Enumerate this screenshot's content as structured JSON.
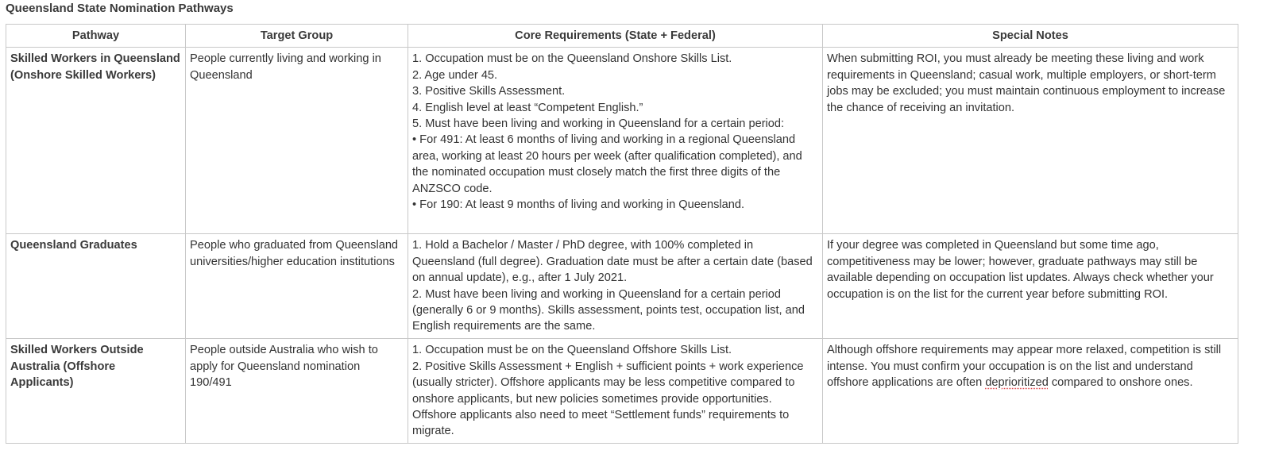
{
  "title": "Queensland State Nomination Pathways",
  "columns": [
    "Pathway",
    "Target Group",
    "Core Requirements (State + Federal)",
    "Special Notes"
  ],
  "rows": [
    {
      "pathway": "Skilled Workers in Queensland (Onshore Skilled Workers)",
      "target": "People currently living and working in Queensland",
      "requirements": [
        "1. Occupation must be on the Queensland Onshore Skills List.",
        "2. Age under 45.",
        "3. Positive Skills Assessment.",
        "4. English level at least “Competent English.”",
        "5. Must have been living and working in Queensland for a certain period:",
        "• For 491: At least 6 months of living and working in a regional Queensland area, working at least 20 hours per week (after qualification completed), and the nominated occupation must closely match the first three digits of the ANZSCO code.",
        "• For 190: At least 9 months of living and working in Queensland."
      ],
      "notes": "When submitting ROI, you must already be meeting these living and work requirements in Queensland; casual work, multiple employers, or short-term jobs may be excluded; you must maintain continuous employment to increase the chance of receiving an invitation."
    },
    {
      "pathway": "Queensland Graduates",
      "target": "People who graduated from Queensland universities/higher education institutions",
      "requirements": [
        "1. Hold a Bachelor / Master / PhD degree, with 100% completed in Queensland (full degree). Graduation date must be after a certain date (based on annual update), e.g., after 1 July 2021.",
        "2. Must have been living and working in Queensland for a certain period (generally 6 or 9 months). Skills assessment, points test, occupation list, and English requirements are the same."
      ],
      "notes": "If your degree was completed in Queensland but some time ago, competitiveness may be lower; however, graduate pathways may still be available depending on occupation list updates. Always check whether your occupation is on the list for the current year before submitting ROI."
    },
    {
      "pathway": "Skilled Workers Outside Australia (Offshore Applicants)",
      "target": "People outside Australia who wish to apply for Queensland nomination 190/491",
      "requirements": [
        "1. Occupation must be on the Queensland Offshore Skills List.",
        "2. Positive Skills Assessment + English + sufficient points + work experience (usually stricter). Offshore applicants may be less competitive compared to onshore applicants, but new policies sometimes provide opportunities. Offshore applicants also need to meet “Settlement funds” requirements to migrate."
      ],
      "notes_before": "Although offshore requirements may appear more relaxed, competition is still intense. You must confirm your occupation is on the list and understand offshore applications are often ",
      "notes_flagged": "deprioritized",
      "notes_after": " compared to onshore ones."
    }
  ],
  "colors": {
    "border": "#c8c8c8",
    "text": "#333333",
    "spellcheck": "#e0474c"
  }
}
